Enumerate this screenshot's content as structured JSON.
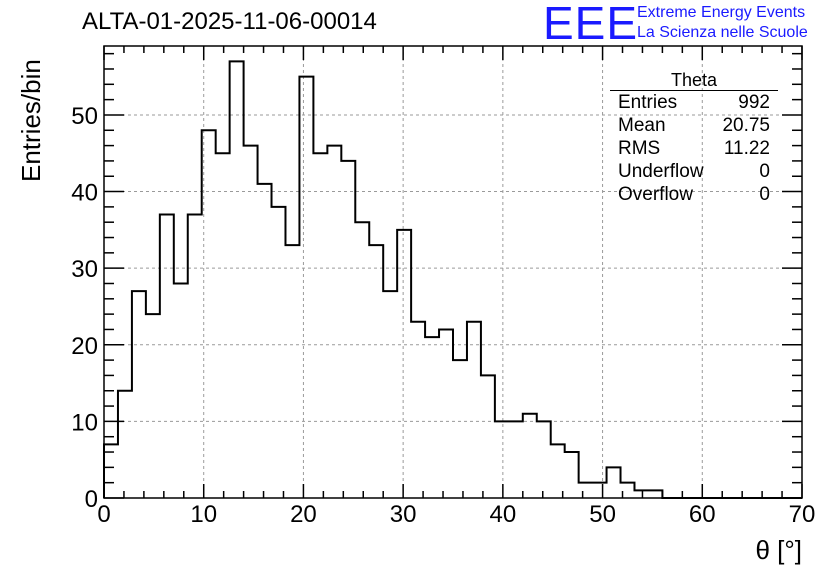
{
  "title": "ALTA-01-2025-11-06-00014",
  "logo": {
    "mark": "EEE",
    "line1": "Extreme Energy Events",
    "line2": "La Scienza nelle Scuole"
  },
  "stats": {
    "name": "Theta",
    "rows": [
      {
        "label": "Entries",
        "value": "992"
      },
      {
        "label": "Mean",
        "value": "20.75"
      },
      {
        "label": "RMS",
        "value": "11.22"
      },
      {
        "label": "Underflow",
        "value": "0"
      },
      {
        "label": "Overflow",
        "value": "0"
      }
    ]
  },
  "chart_data": {
    "type": "bar",
    "title": "ALTA-01-2025-11-06-00014",
    "xlabel": "θ [°]",
    "ylabel": "Entries/bin",
    "xlim": [
      0,
      70
    ],
    "ylim": [
      0,
      59
    ],
    "bin_width": 1.4,
    "grid": true,
    "x_ticks": [
      0,
      10,
      20,
      30,
      40,
      50,
      60,
      70
    ],
    "y_ticks": [
      0,
      10,
      20,
      30,
      40,
      50
    ],
    "values": [
      7,
      14,
      27,
      24,
      37,
      28,
      37,
      48,
      45,
      57,
      46,
      41,
      38,
      33,
      55,
      45,
      46,
      44,
      36,
      33,
      27,
      35,
      23,
      21,
      22,
      18,
      23,
      16,
      10,
      10,
      11,
      10,
      7,
      6,
      2,
      2,
      4,
      2,
      1,
      1,
      0,
      0,
      0,
      0,
      0,
      0,
      0,
      0,
      0,
      0
    ]
  }
}
